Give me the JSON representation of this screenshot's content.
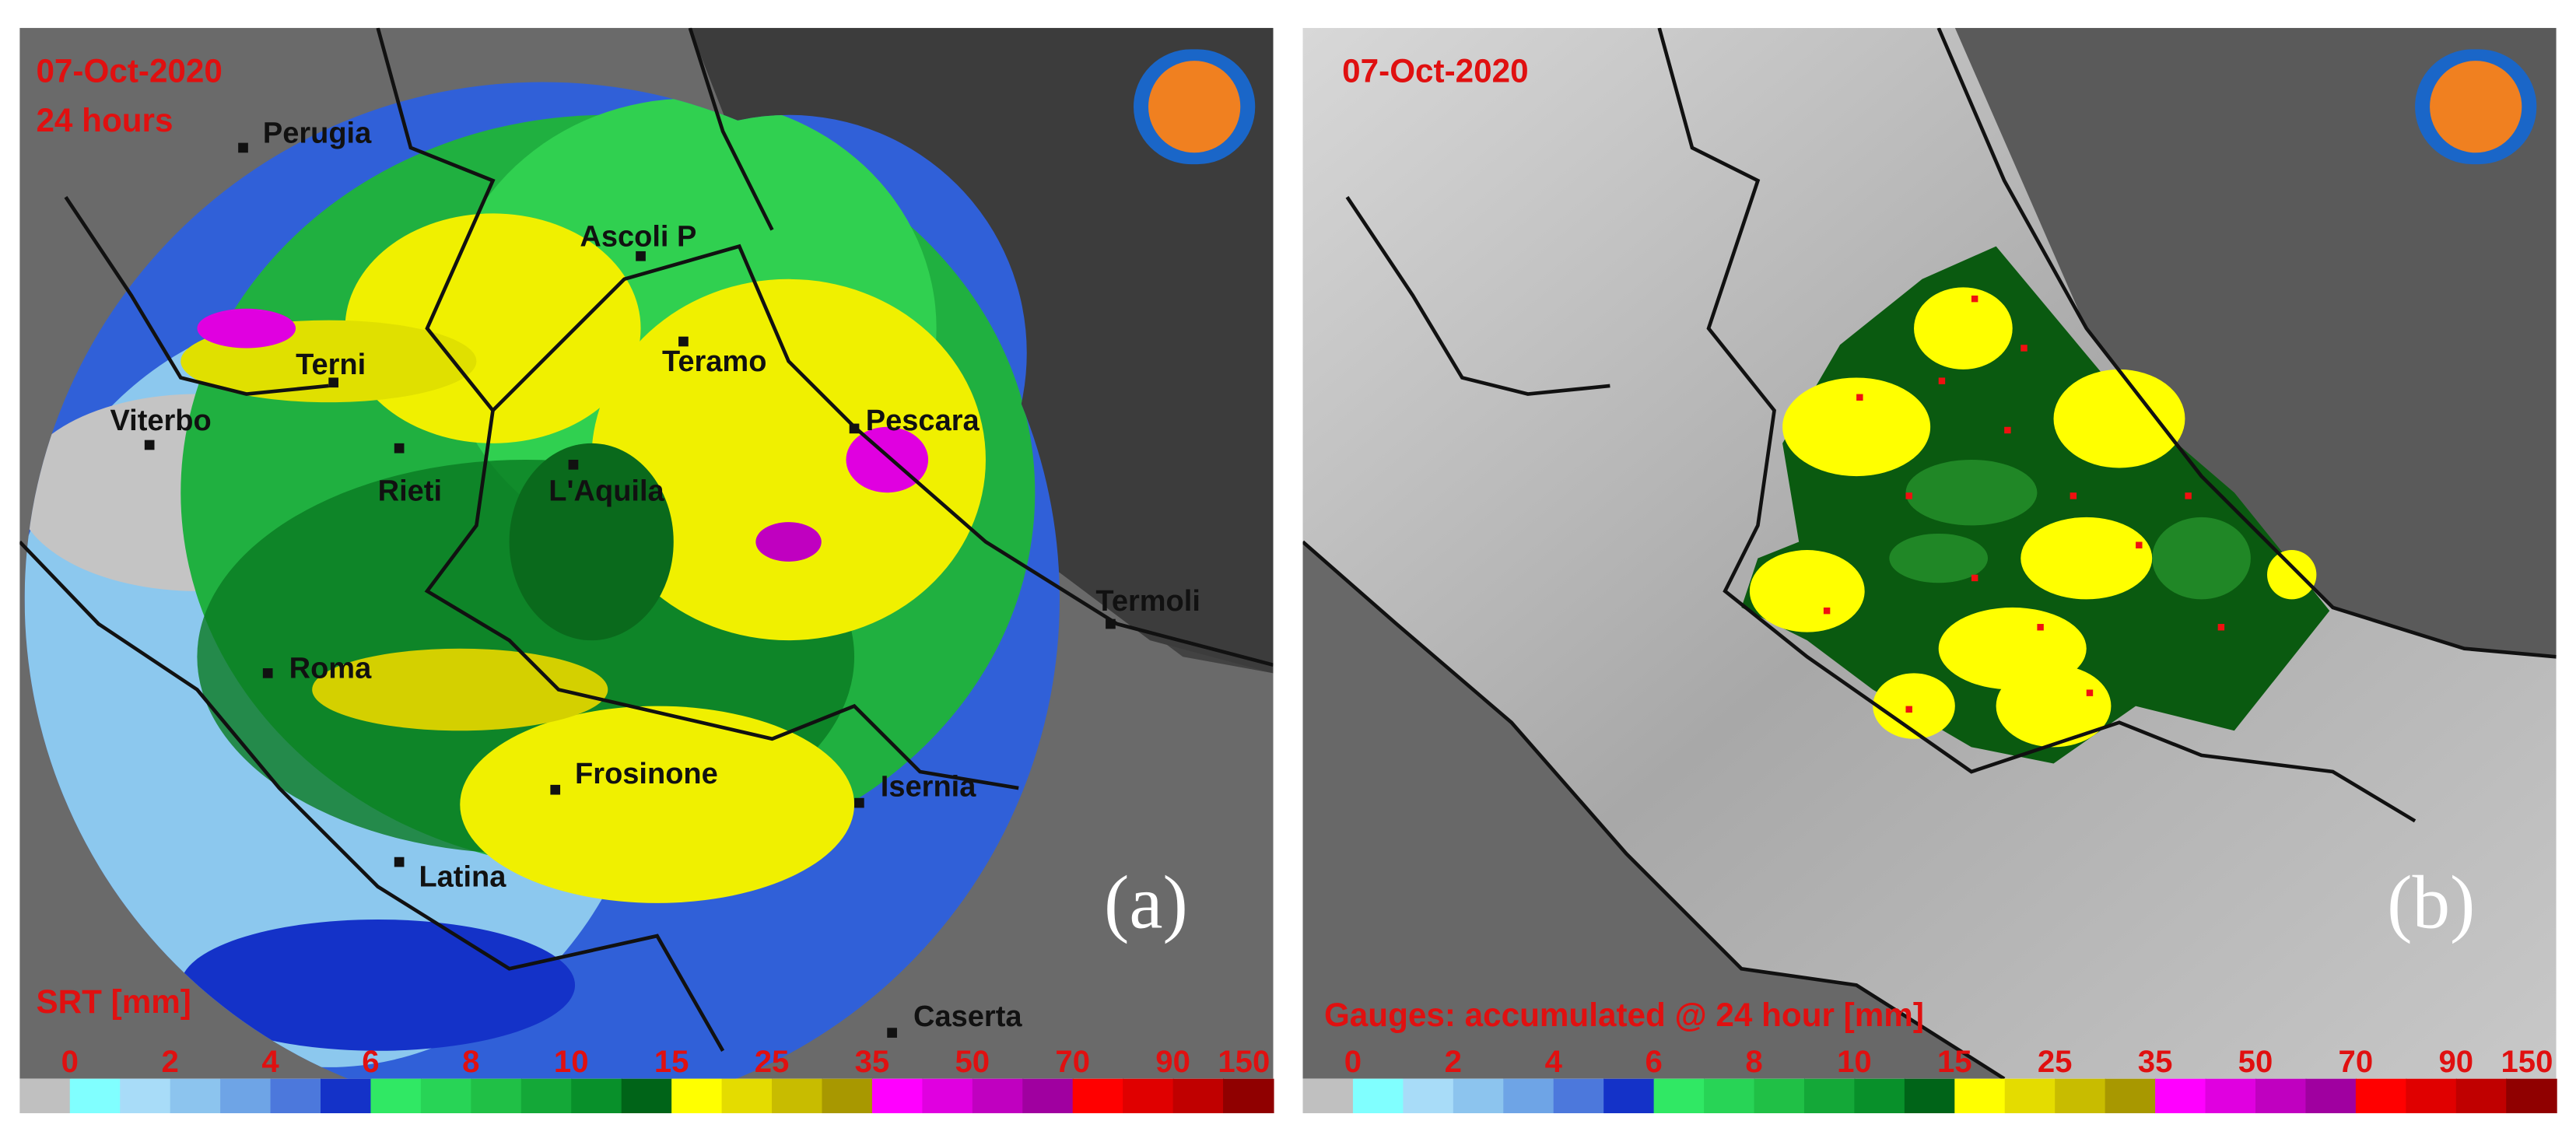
{
  "panels": [
    {
      "date": "07-Oct-2020",
      "duration": "24 hours",
      "cities": [
        "Perugia",
        "Ascoli P",
        "Terni",
        "Teramo",
        "Viterbo",
        "Pescara",
        "Rieti",
        "L'Aquila",
        "Termoli",
        "Roma",
        "Frosinone",
        "Isernia",
        "Latina",
        "Caserta"
      ],
      "colorbar_title": "SRT [mm]",
      "letter": "(a)"
    },
    {
      "date": "07-Oct-2020",
      "colorbar_title": "Gauges: accumulated @ 24 hour [mm]",
      "letter": "(b)"
    }
  ],
  "legend": {
    "ticks": [
      0,
      2,
      4,
      6,
      8,
      10,
      15,
      25,
      35,
      50,
      70,
      90,
      150
    ],
    "colors": [
      "#c0c0c0",
      "#80ffff",
      "#a8dcf8",
      "#8cc4ee",
      "#6ea4e6",
      "#4c78dc",
      "#1432c8",
      "#30e864",
      "#28d456",
      "#20c046",
      "#14a838",
      "#08902a",
      "#006418",
      "#ffff00",
      "#e4dc00",
      "#c8bc00",
      "#a89800",
      "#ff00ff",
      "#e000e0",
      "#c000c0",
      "#a000a0",
      "#ff0000",
      "#e00000",
      "#c00000",
      "#900000"
    ]
  }
}
